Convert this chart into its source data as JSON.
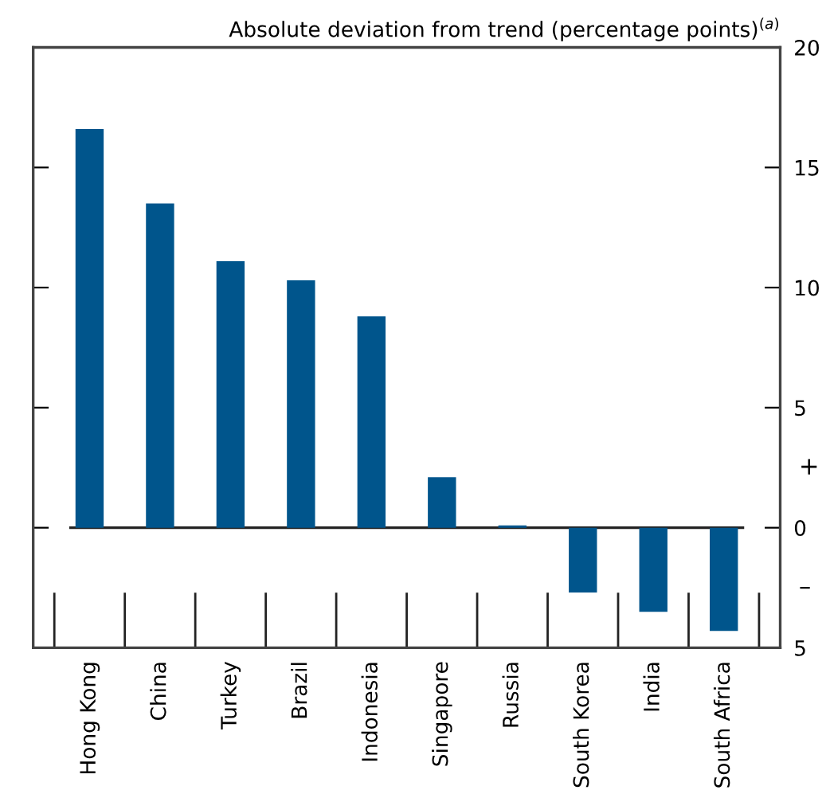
{
  "chart_data": {
    "type": "bar",
    "ylabel": "Absolute deviation from trend (percentage points)$^{(a)}$",
    "categories": [
      "Hong Kong",
      "China",
      "Turkey",
      "Brazil",
      "Indonesia",
      "Singapore",
      "Russia",
      "South Korea",
      "India",
      "South Africa"
    ],
    "values": [
      16.6,
      13.5,
      11.1,
      10.3,
      8.8,
      2.1,
      0.1,
      -2.7,
      -3.5,
      -4.3
    ],
    "color": "#00558c",
    "ylim": [
      -5,
      20
    ],
    "yticks": [
      20,
      15,
      10,
      5,
      0,
      {
        "value": -5,
        "label": "5"
      }
    ],
    "ref_lines": [
      {
        "axis": "y",
        "value": 0,
        "color": "#222222"
      }
    ],
    "annotations": [
      "+",
      "–"
    ],
    "grid": false,
    "legend": false
  }
}
